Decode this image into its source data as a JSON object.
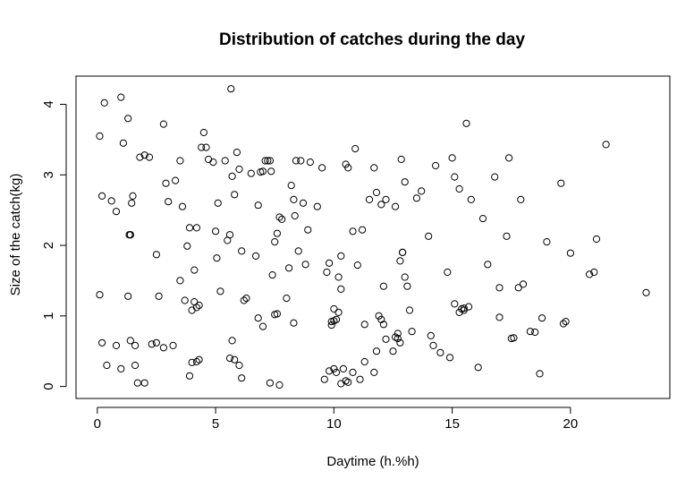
{
  "chart_data": {
    "type": "scatter",
    "title": "Distribution of catches during the day",
    "xlabel": "Daytime (h.%h)",
    "ylabel": "Size of the catch(kg)",
    "xlim": [
      -0.9,
      24.2
    ],
    "ylim": [
      -0.17,
      4.4
    ],
    "xticks": [
      0,
      5,
      10,
      15,
      20
    ],
    "yticks": [
      0,
      1,
      2,
      3,
      4
    ],
    "grid": false,
    "legend": "none",
    "marker_color": "#000000",
    "x": [
      0.1,
      0.2,
      0.3,
      0.6,
      0.8,
      1.0,
      1.1,
      1.3,
      1.35,
      1.4,
      1.4,
      1.45,
      1.5,
      0.1,
      0.2,
      0.4,
      0.8,
      1.0,
      1.3,
      1.4,
      1.6,
      1.7,
      1.8,
      2.0,
      2.2,
      2.5,
      2.6,
      2.8,
      2.9,
      3.0,
      3.3,
      3.5,
      3.6,
      3.7,
      3.8,
      3.9,
      4.0,
      4.1,
      4.1,
      4.2,
      4.2,
      4.3,
      4.4,
      4.5,
      1.6,
      2.0,
      2.3,
      2.5,
      2.8,
      3.2,
      3.5,
      3.9,
      4.0,
      4.2,
      4.3,
      4.6,
      4.7,
      4.9,
      5.0,
      5.05,
      5.1,
      5.2,
      5.4,
      5.5,
      5.6,
      5.65,
      5.7,
      5.8,
      5.9,
      6.0,
      6.1,
      6.2,
      6.3,
      6.5,
      6.7,
      6.8,
      6.9,
      7.0,
      7.1,
      7.2,
      7.3,
      7.35,
      7.4,
      7.5,
      7.6,
      7.7,
      7.8,
      8.0,
      8.1,
      8.2,
      8.3,
      8.35,
      8.4,
      8.5,
      8.6,
      8.7,
      8.8,
      8.9,
      9.0,
      9.3,
      5.6,
      5.7,
      5.8,
      6.0,
      6.1,
      6.8,
      7.0,
      7.3,
      7.5,
      7.6,
      7.7,
      8.3,
      9.5,
      9.7,
      9.8,
      9.9,
      10.0,
      10.0,
      10.1,
      10.2,
      10.2,
      10.3,
      10.3,
      10.5,
      10.6,
      10.8,
      10.9,
      11.0,
      11.2,
      11.3,
      11.5,
      11.7,
      11.8,
      11.9,
      12.0,
      12.1,
      12.2,
      12.5,
      12.6,
      12.7,
      12.8,
      12.85,
      12.9,
      13.0,
      13.1,
      13.2,
      13.5,
      9.6,
      9.8,
      9.9,
      10.0,
      10.1,
      10.3,
      10.4,
      10.5,
      10.6,
      10.8,
      11.1,
      11.3,
      11.7,
      11.8,
      12.0,
      12.1,
      12.2,
      12.6,
      12.7,
      12.8,
      12.9,
      13.0,
      13.3,
      13.7,
      14.0,
      14.3,
      14.8,
      15.0,
      15.1,
      15.3,
      15.5,
      15.6,
      15.7,
      16.1,
      16.5,
      17.0,
      17.3,
      17.4,
      17.6,
      17.9,
      18.3,
      18.8,
      19.0,
      19.6,
      19.8,
      20.0,
      14.1,
      14.2,
      14.5,
      14.9,
      15.1,
      15.3,
      15.4,
      15.5,
      15.8,
      16.3,
      16.8,
      17.0,
      17.5,
      17.8,
      18.0,
      18.5,
      18.7,
      19.7,
      20.8,
      21.0,
      21.1,
      21.5,
      23.2
    ],
    "y": [
      3.55,
      2.7,
      4.02,
      2.63,
      2.48,
      4.1,
      3.45,
      3.8,
      2.15,
      2.15,
      2.15,
      2.6,
      2.7,
      1.3,
      0.62,
      0.3,
      0.58,
      0.25,
      1.28,
      0.65,
      0.3,
      0.05,
      3.25,
      3.28,
      3.25,
      1.87,
      1.28,
      3.72,
      2.88,
      2.62,
      2.92,
      3.2,
      2.55,
      1.22,
      1.99,
      2.25,
      1.08,
      1.2,
      1.65,
      1.12,
      2.25,
      1.15,
      3.39,
      3.6,
      0.58,
      0.05,
      0.6,
      0.62,
      0.55,
      0.58,
      1.5,
      0.15,
      0.34,
      0.35,
      0.38,
      3.39,
      3.22,
      3.18,
      2.2,
      1.82,
      2.6,
      1.35,
      3.2,
      2.07,
      2.15,
      4.22,
      2.98,
      2.72,
      3.32,
      3.08,
      1.92,
      1.22,
      1.25,
      3.02,
      1.85,
      2.57,
      3.04,
      3.05,
      3.2,
      3.2,
      3.2,
      3.05,
      1.58,
      2.05,
      2.17,
      2.4,
      2.37,
      1.25,
      1.68,
      2.85,
      2.65,
      2.42,
      3.2,
      1.92,
      3.2,
      2.6,
      1.73,
      2.22,
      3.18,
      2.55,
      0.4,
      0.65,
      0.38,
      0.3,
      0.12,
      0.97,
      0.85,
      0.05,
      1.02,
      1.03,
      0.02,
      0.9,
      3.1,
      1.62,
      1.75,
      0.87,
      1.1,
      0.25,
      0.95,
      1.55,
      1.05,
      1.85,
      1.38,
      3.15,
      3.1,
      2.2,
      3.37,
      1.72,
      2.22,
      0.88,
      2.65,
      3.1,
      2.75,
      1.0,
      2.58,
      1.42,
      2.65,
      0.5,
      2.55,
      0.75,
      1.78,
      3.22,
      1.9,
      2.9,
      1.42,
      1.08,
      2.67,
      0.1,
      0.22,
      0.92,
      0.93,
      0.2,
      0.04,
      0.25,
      0.08,
      0.06,
      0.2,
      0.1,
      0.35,
      0.2,
      0.5,
      0.95,
      0.88,
      0.67,
      0.7,
      0.68,
      0.62,
      1.9,
      1.55,
      0.78,
      2.77,
      2.13,
      3.13,
      1.62,
      3.24,
      2.97,
      2.8,
      1.11,
      3.73,
      1.13,
      0.27,
      1.73,
      0.98,
      2.13,
      3.24,
      0.69,
      2.65,
      0.78,
      0.97,
      2.05,
      2.88,
      0.92,
      1.89,
      0.72,
      0.58,
      0.48,
      0.41,
      1.17,
      1.05,
      1.1,
      1.08,
      2.65,
      2.38,
      2.97,
      1.4,
      0.68,
      1.4,
      1.45,
      0.77,
      0.18,
      0.89,
      1.59,
      1.62,
      2.09,
      3.43,
      1.33
    ]
  }
}
